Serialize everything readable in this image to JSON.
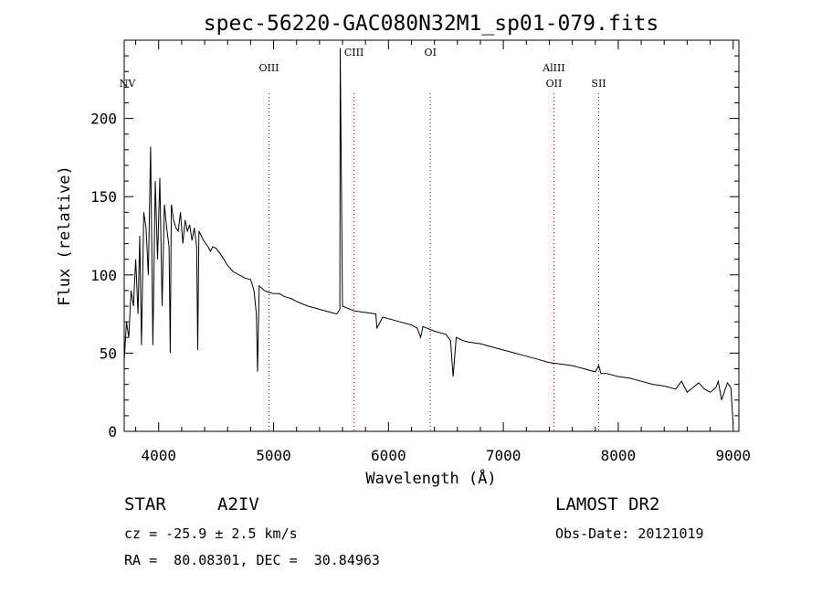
{
  "chart_data": {
    "type": "line",
    "title": "spec-56220-GAC080N32M1_sp01-079.fits",
    "xlabel": "Wavelength (Å)",
    "ylabel": "Flux (relative)",
    "xlim": [
      3700,
      9050
    ],
    "ylim": [
      0,
      250
    ],
    "xticks": [
      4000,
      5000,
      6000,
      7000,
      8000,
      9000
    ],
    "yticks": [
      0,
      50,
      100,
      150,
      200
    ],
    "grid": false,
    "series": [
      {
        "x": [
          3700,
          3720,
          3740,
          3760,
          3780,
          3800,
          3820,
          3835,
          3850,
          3870,
          3890,
          3910,
          3930,
          3950,
          3970,
          3990,
          4010,
          4030,
          4050,
          4070,
          4090,
          4101,
          4110,
          4130,
          4150,
          4170,
          4190,
          4210,
          4230,
          4250,
          4270,
          4290,
          4310,
          4330,
          4340,
          4350,
          4370,
          4390,
          4410,
          4430,
          4450,
          4470,
          4500,
          4550,
          4600,
          4650,
          4700,
          4750,
          4800,
          4830,
          4850,
          4861,
          4875,
          4890,
          4920,
          4950,
          5000,
          5050,
          5100,
          5150,
          5200,
          5300,
          5400,
          5500,
          5550,
          5577,
          5580,
          5600,
          5700,
          5800,
          5890,
          5900,
          5950,
          6000,
          6100,
          6200,
          6250,
          6280,
          6300,
          6400,
          6500,
          6540,
          6563,
          6590,
          6650,
          6700,
          6800,
          6900,
          7000,
          7100,
          7200,
          7300,
          7400,
          7500,
          7600,
          7700,
          7800,
          7830,
          7850,
          7900,
          8000,
          8100,
          8200,
          8300,
          8400,
          8500,
          8550,
          8600,
          8650,
          8700,
          8750,
          8800,
          8850,
          8870,
          8900,
          8950,
          8980,
          9000
        ],
        "y": [
          45,
          70,
          60,
          90,
          80,
          110,
          75,
          125,
          55,
          140,
          130,
          100,
          182,
          55,
          160,
          110,
          162,
          80,
          145,
          130,
          118,
          50,
          145,
          135,
          130,
          128,
          140,
          120,
          135,
          128,
          132,
          122,
          130,
          118,
          52,
          128,
          125,
          122,
          120,
          118,
          115,
          118,
          117,
          112,
          106,
          102,
          100,
          98,
          97,
          90,
          75,
          38,
          93,
          92,
          90,
          89,
          88,
          88,
          86,
          85,
          83,
          80,
          78,
          76,
          75,
          78,
          245,
          80,
          77,
          76,
          75,
          66,
          73,
          72,
          70,
          68,
          66,
          60,
          67,
          64,
          62,
          58,
          35,
          60,
          58,
          57,
          56,
          54,
          52,
          50,
          48,
          46,
          44,
          43,
          42,
          40,
          38,
          42,
          37,
          37,
          35,
          34,
          32,
          30,
          29,
          27,
          32,
          25,
          28,
          31,
          27,
          25,
          28,
          32,
          20,
          31,
          28,
          5
        ]
      }
    ],
    "lines": [
      {
        "name": "NV",
        "wavelength": 3728
      },
      {
        "name": "OIII",
        "wavelength": 4960
      },
      {
        "name": "CIII",
        "wavelength": 5700
      },
      {
        "name": "OI",
        "wavelength": 6365
      },
      {
        "name": "AlIII",
        "wavelength": 7440
      },
      {
        "name": "OII",
        "wavelength": 7440
      },
      {
        "name": "SII",
        "wavelength": 7830
      }
    ]
  },
  "info": {
    "class": "STAR",
    "subclass": "A2IV",
    "survey": "LAMOST DR2",
    "redshift": "cz = -25.9 ± 2.5 km/s",
    "obs_date": "Obs-Date: 20121019",
    "coords": "RA =  80.08301, DEC =  30.84963"
  },
  "colors": {
    "marker": "#cc0000",
    "spectrum": "#000000",
    "background": "#ffffff"
  }
}
